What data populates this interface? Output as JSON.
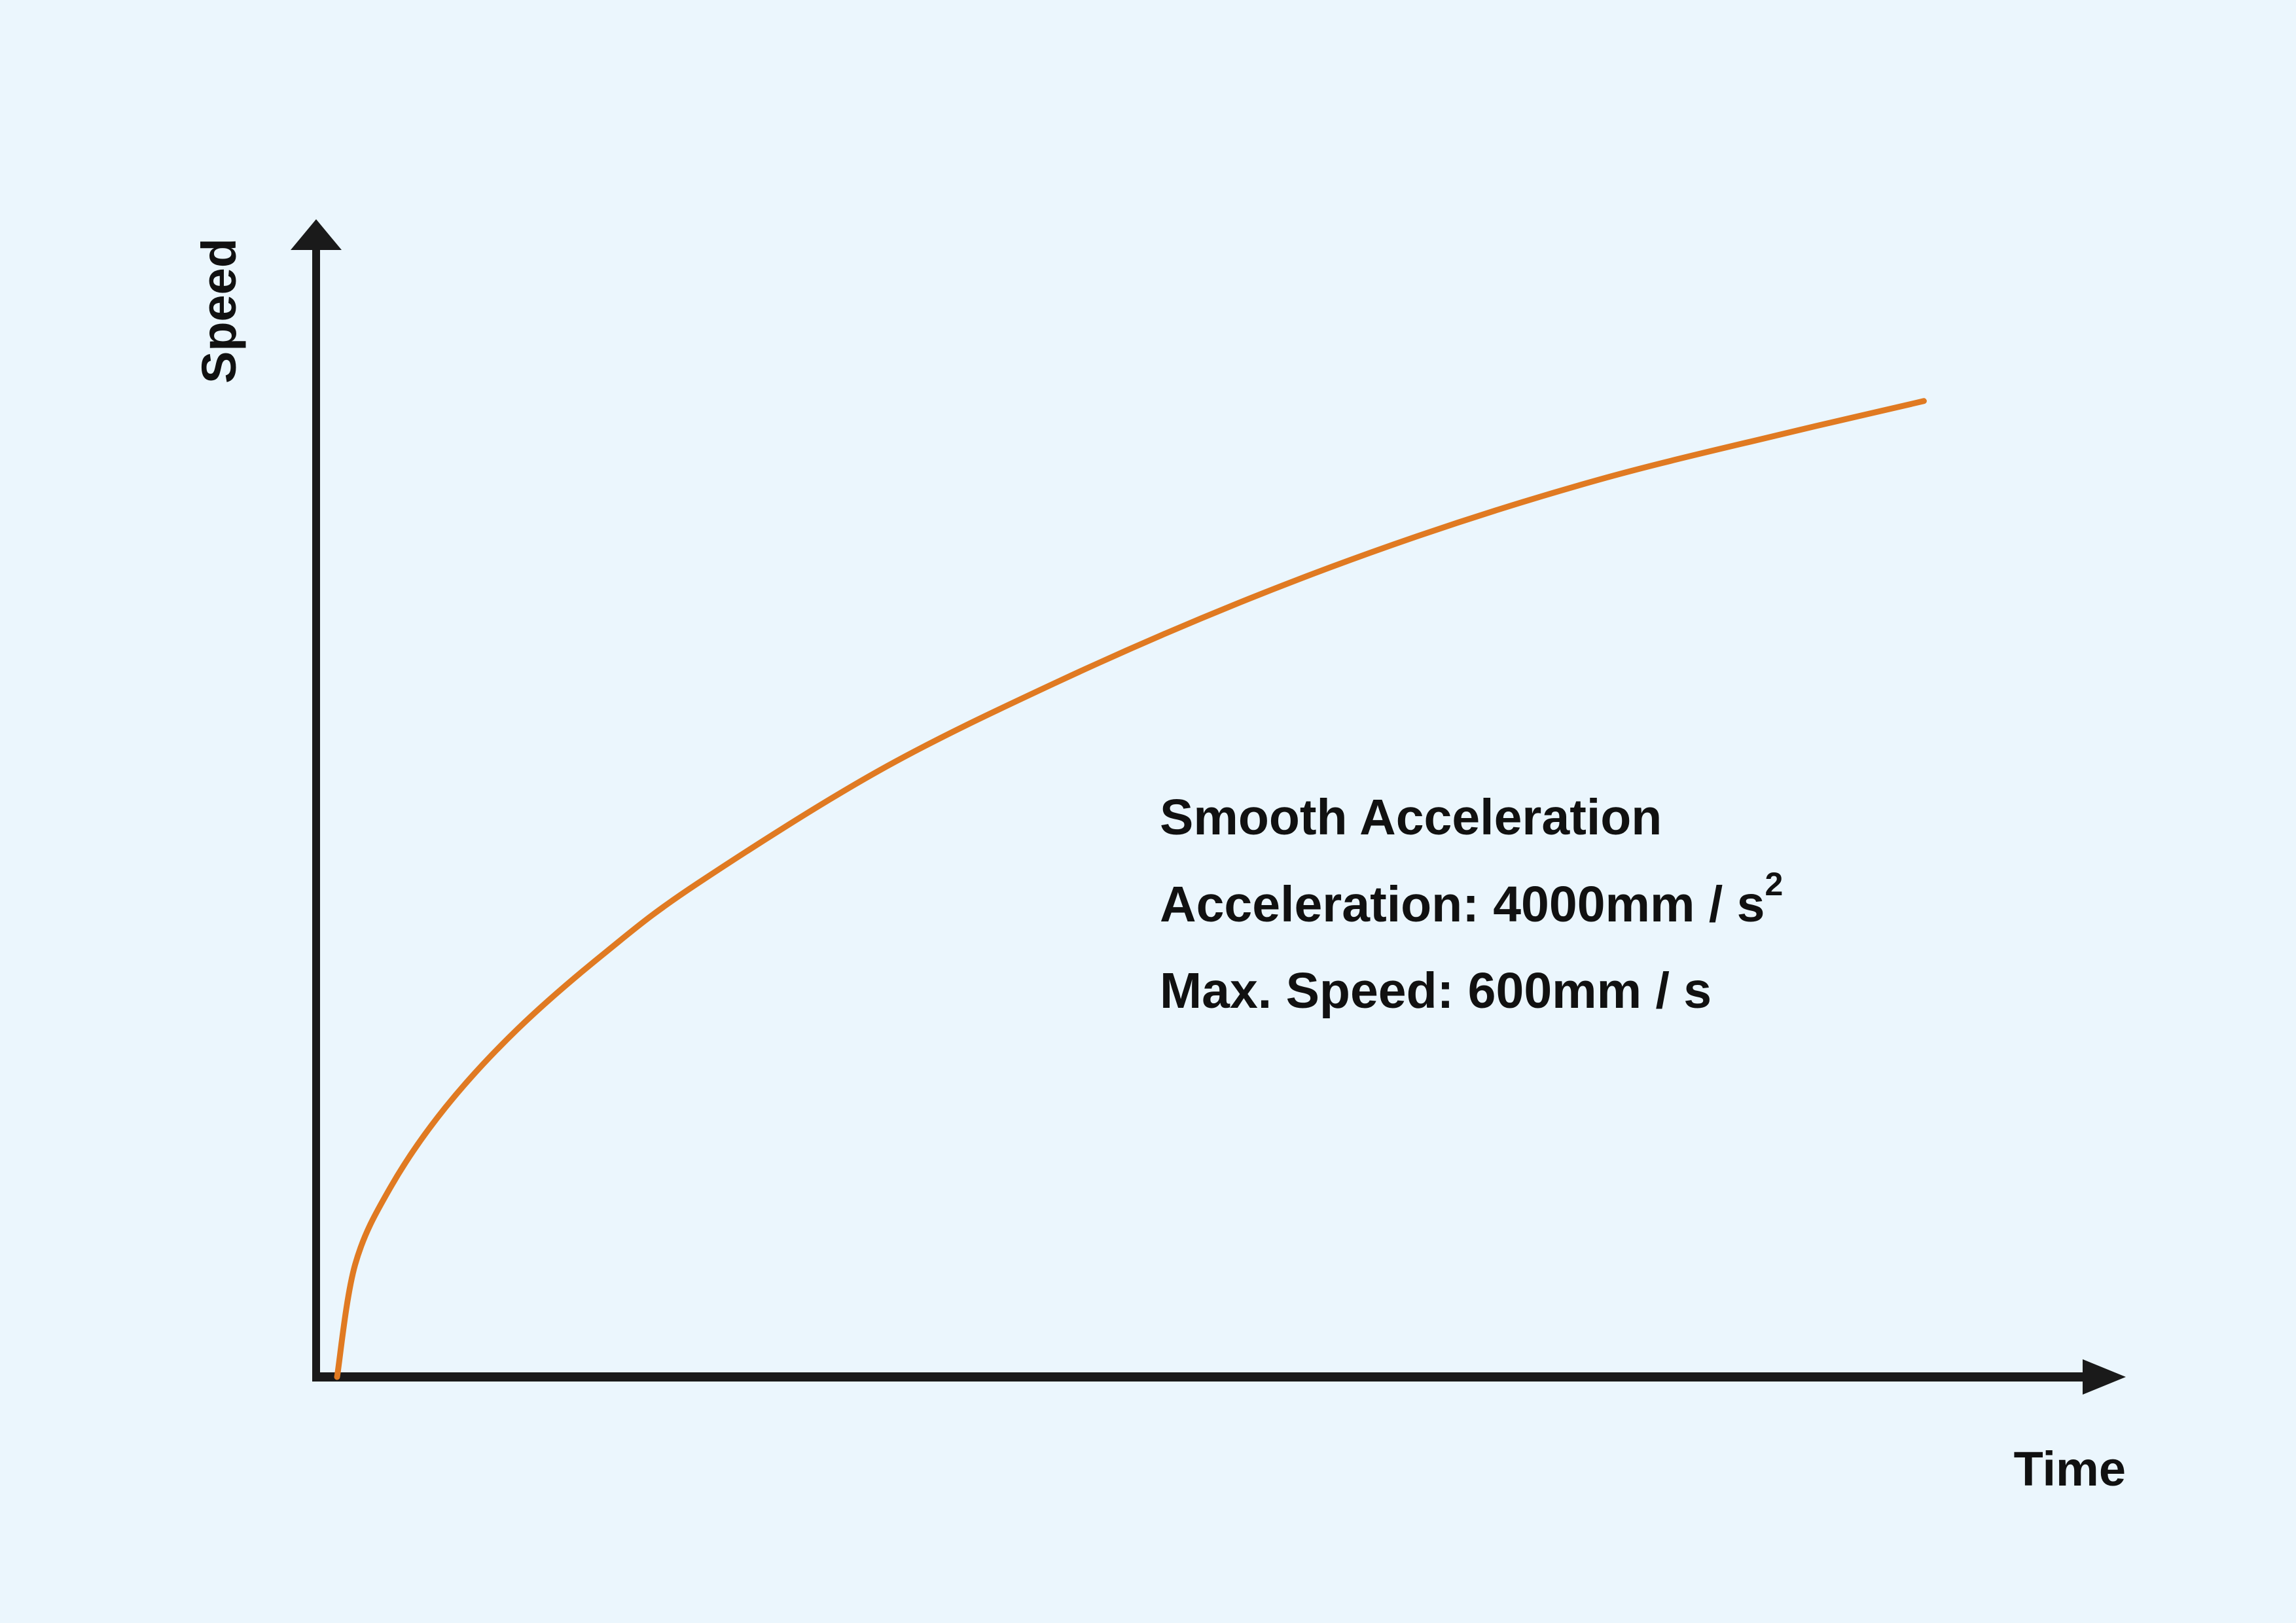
{
  "chart_data": {
    "type": "line",
    "title": "",
    "xlabel": "Time",
    "ylabel": "Speed",
    "grid": false,
    "legend": "none",
    "axis_ticks": "none",
    "xlim": [
      0,
      1
    ],
    "ylim": [
      0,
      1
    ],
    "series": [
      {
        "color": "#e07a22",
        "shape": "concave rising curve, steep at start, flattening toward the end",
        "x": [
          0.0,
          0.01,
          0.03,
          0.06,
          0.1,
          0.15,
          0.2,
          0.3,
          0.4,
          0.5,
          0.6,
          0.7,
          0.8,
          0.88
        ],
        "y": [
          0.0,
          0.1,
          0.17,
          0.24,
          0.31,
          0.38,
          0.44,
          0.54,
          0.62,
          0.69,
          0.75,
          0.8,
          0.84,
          0.87
        ]
      }
    ],
    "annotations": {
      "line1": "Smooth Acceleration",
      "line2_prefix": "Acceleration: 4000mm / s",
      "line2_superscript": "2",
      "line3": "Max. Speed: 600mm / s"
    },
    "colors": {
      "background": "#ebf6fd",
      "axis": "#1a1a1a",
      "text": "#111111",
      "curve": "#e07a22"
    }
  }
}
